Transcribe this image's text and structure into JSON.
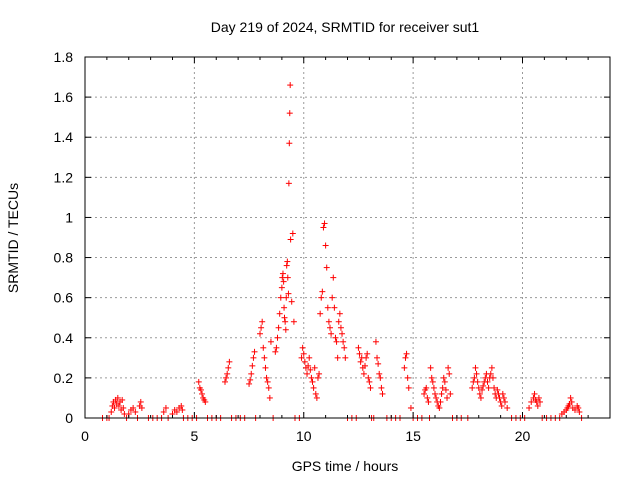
{
  "chart_data": {
    "type": "scatter",
    "title": "Day 219 of 2024, SRMTID for receiver sut1",
    "xlabel": "GPS time / hours",
    "ylabel": "SRMTID / TECUs",
    "xlim": [
      0,
      24
    ],
    "ylim": [
      0,
      1.8
    ],
    "xticks": [
      "0",
      "5",
      "10",
      "15",
      "20"
    ],
    "yticks": [
      "0",
      "0.2",
      "0.4",
      "0.6",
      "0.8",
      "1",
      "1.2",
      "1.4",
      "1.6",
      "1.8"
    ],
    "grid": true,
    "marker": "+",
    "color": "#ff0000",
    "series": [
      {
        "name": "sut1",
        "points": [
          [
            0.8,
            0
          ],
          [
            1.0,
            0
          ],
          [
            1.1,
            0
          ],
          [
            1.2,
            0.03
          ],
          [
            1.25,
            0.06
          ],
          [
            1.3,
            0.08
          ],
          [
            1.35,
            0.05
          ],
          [
            1.4,
            0.09
          ],
          [
            1.45,
            0.07
          ],
          [
            1.5,
            0.1
          ],
          [
            1.55,
            0.06
          ],
          [
            1.6,
            0.08
          ],
          [
            1.65,
            0.04
          ],
          [
            1.7,
            0.09
          ],
          [
            1.75,
            0.05
          ],
          [
            1.8,
            0.02
          ],
          [
            1.9,
            0
          ],
          [
            2.0,
            0.02
          ],
          [
            2.1,
            0.04
          ],
          [
            2.2,
            0.05
          ],
          [
            2.3,
            0.03
          ],
          [
            2.4,
            0
          ],
          [
            2.5,
            0.06
          ],
          [
            2.55,
            0.08
          ],
          [
            2.6,
            0.05
          ],
          [
            2.9,
            0
          ],
          [
            3.1,
            0
          ],
          [
            3.3,
            0
          ],
          [
            3.5,
            0
          ],
          [
            3.6,
            0.03
          ],
          [
            3.7,
            0.05
          ],
          [
            3.8,
            0
          ],
          [
            4.0,
            0.02
          ],
          [
            4.1,
            0.04
          ],
          [
            4.2,
            0.03
          ],
          [
            4.3,
            0.05
          ],
          [
            4.4,
            0.06
          ],
          [
            4.45,
            0.04
          ],
          [
            4.5,
            0
          ],
          [
            4.7,
            0
          ],
          [
            4.9,
            0
          ],
          [
            5.1,
            0
          ],
          [
            5.2,
            0.18
          ],
          [
            5.25,
            0.15
          ],
          [
            5.3,
            0.14
          ],
          [
            5.35,
            0.12
          ],
          [
            5.4,
            0.1
          ],
          [
            5.45,
            0.09
          ],
          [
            5.5,
            0.08
          ],
          [
            5.6,
            0
          ],
          [
            5.8,
            0
          ],
          [
            6.0,
            0
          ],
          [
            6.2,
            0
          ],
          [
            6.4,
            0.18
          ],
          [
            6.45,
            0.2
          ],
          [
            6.5,
            0.22
          ],
          [
            6.55,
            0.25
          ],
          [
            6.6,
            0.28
          ],
          [
            6.7,
            0
          ],
          [
            6.9,
            0
          ],
          [
            7.1,
            0
          ],
          [
            7.3,
            0
          ],
          [
            7.5,
            0.17
          ],
          [
            7.55,
            0.19
          ],
          [
            7.6,
            0.22
          ],
          [
            7.65,
            0.26
          ],
          [
            7.7,
            0.3
          ],
          [
            7.75,
            0.33
          ],
          [
            7.8,
            0
          ],
          [
            8.0,
            0.42
          ],
          [
            8.05,
            0.45
          ],
          [
            8.1,
            0.48
          ],
          [
            8.15,
            0.35
          ],
          [
            8.2,
            0.3
          ],
          [
            8.25,
            0.25
          ],
          [
            8.3,
            0.2
          ],
          [
            8.35,
            0.18
          ],
          [
            8.4,
            0.15
          ],
          [
            8.45,
            0.1
          ],
          [
            8.5,
            0.38
          ],
          [
            8.6,
            0
          ],
          [
            8.7,
            0.33
          ],
          [
            8.75,
            0.35
          ],
          [
            8.8,
            0.4
          ],
          [
            8.85,
            0.45
          ],
          [
            8.9,
            0.52
          ],
          [
            8.95,
            0.6
          ],
          [
            9.0,
            0.65
          ],
          [
            9.02,
            0.7
          ],
          [
            9.05,
            0.72
          ],
          [
            9.08,
            0.68
          ],
          [
            9.1,
            0.55
          ],
          [
            9.12,
            0.5
          ],
          [
            9.15,
            0.48
          ],
          [
            9.18,
            0.44
          ],
          [
            9.2,
            0.6
          ],
          [
            9.22,
            0.76
          ],
          [
            9.25,
            0.78
          ],
          [
            9.27,
            0.7
          ],
          [
            9.3,
            0.62
          ],
          [
            9.32,
            1.17
          ],
          [
            9.34,
            1.37
          ],
          [
            9.36,
            1.52
          ],
          [
            9.38,
            1.66
          ],
          [
            9.4,
            0.89
          ],
          [
            9.45,
            0.58
          ],
          [
            9.5,
            0.92
          ],
          [
            9.55,
            0.48
          ],
          [
            9.6,
            0
          ],
          [
            9.8,
            0
          ],
          [
            9.9,
            0.3
          ],
          [
            9.95,
            0.35
          ],
          [
            10.0,
            0.32
          ],
          [
            10.05,
            0.28
          ],
          [
            10.1,
            0.25
          ],
          [
            10.15,
            0.22
          ],
          [
            10.2,
            0.26
          ],
          [
            10.25,
            0.3
          ],
          [
            10.3,
            0.24
          ],
          [
            10.35,
            0.2
          ],
          [
            10.4,
            0.18
          ],
          [
            10.45,
            0.15
          ],
          [
            10.5,
            0.25
          ],
          [
            10.55,
            0.12
          ],
          [
            10.6,
            0.1
          ],
          [
            10.65,
            0.2
          ],
          [
            10.7,
            0.22
          ],
          [
            10.75,
            0.52
          ],
          [
            10.8,
            0.6
          ],
          [
            10.85,
            0.63
          ],
          [
            10.9,
            0.95
          ],
          [
            10.95,
            0.97
          ],
          [
            11.0,
            0.86
          ],
          [
            11.05,
            0.75
          ],
          [
            11.1,
            0.55
          ],
          [
            11.15,
            0.48
          ],
          [
            11.2,
            0.45
          ],
          [
            11.25,
            0.42
          ],
          [
            11.3,
            0.6
          ],
          [
            11.35,
            0.7
          ],
          [
            11.4,
            0.55
          ],
          [
            11.45,
            0.4
          ],
          [
            11.5,
            0.38
          ],
          [
            11.55,
            0.3
          ],
          [
            11.6,
            0.48
          ],
          [
            11.65,
            0.52
          ],
          [
            11.7,
            0.45
          ],
          [
            11.75,
            0.42
          ],
          [
            11.8,
            0.38
          ],
          [
            11.85,
            0.35
          ],
          [
            11.9,
            0.3
          ],
          [
            12.0,
            0
          ],
          [
            12.2,
            0
          ],
          [
            12.4,
            0
          ],
          [
            12.5,
            0.35
          ],
          [
            12.55,
            0.32
          ],
          [
            12.6,
            0.28
          ],
          [
            12.65,
            0.3
          ],
          [
            12.7,
            0.25
          ],
          [
            12.75,
            0.22
          ],
          [
            12.8,
            0.26
          ],
          [
            12.85,
            0.3
          ],
          [
            12.9,
            0.32
          ],
          [
            12.95,
            0.2
          ],
          [
            13.0,
            0.18
          ],
          [
            13.05,
            0.15
          ],
          [
            13.1,
            0
          ],
          [
            13.2,
            0
          ],
          [
            13.3,
            0.38
          ],
          [
            13.35,
            0.3
          ],
          [
            13.4,
            0.27
          ],
          [
            13.45,
            0.22
          ],
          [
            13.5,
            0.2
          ],
          [
            13.55,
            0.15
          ],
          [
            13.6,
            0.12
          ],
          [
            13.8,
            0
          ],
          [
            14.0,
            0
          ],
          [
            14.2,
            0
          ],
          [
            14.4,
            0
          ],
          [
            14.6,
            0.25
          ],
          [
            14.65,
            0.3
          ],
          [
            14.7,
            0.32
          ],
          [
            14.75,
            0.2
          ],
          [
            14.8,
            0.15
          ],
          [
            14.9,
            0.05
          ],
          [
            15.0,
            0
          ],
          [
            15.2,
            0
          ],
          [
            15.4,
            0
          ],
          [
            15.5,
            0.12
          ],
          [
            15.55,
            0.14
          ],
          [
            15.6,
            0.15
          ],
          [
            15.65,
            0.1
          ],
          [
            15.7,
            0.08
          ],
          [
            15.75,
            0
          ],
          [
            15.8,
            0.25
          ],
          [
            15.85,
            0.2
          ],
          [
            15.9,
            0.18
          ],
          [
            15.95,
            0.15
          ],
          [
            16.0,
            0.12
          ],
          [
            16.05,
            0.1
          ],
          [
            16.1,
            0.08
          ],
          [
            16.15,
            0.06
          ],
          [
            16.2,
            0.05
          ],
          [
            16.25,
            0.08
          ],
          [
            16.3,
            0.12
          ],
          [
            16.35,
            0.15
          ],
          [
            16.4,
            0.2
          ],
          [
            16.45,
            0.18
          ],
          [
            16.5,
            0.14
          ],
          [
            16.55,
            0.1
          ],
          [
            16.6,
            0.25
          ],
          [
            16.65,
            0.22
          ],
          [
            16.7,
            0.12
          ],
          [
            16.8,
            0
          ],
          [
            17.0,
            0
          ],
          [
            17.2,
            0
          ],
          [
            17.5,
            0
          ],
          [
            17.7,
            0.15
          ],
          [
            17.75,
            0.18
          ],
          [
            17.8,
            0.2
          ],
          [
            17.85,
            0.25
          ],
          [
            17.9,
            0.22
          ],
          [
            17.95,
            0.18
          ],
          [
            18.0,
            0.15
          ],
          [
            18.05,
            0.12
          ],
          [
            18.1,
            0.1
          ],
          [
            18.15,
            0.14
          ],
          [
            18.2,
            0.16
          ],
          [
            18.25,
            0.18
          ],
          [
            18.3,
            0.2
          ],
          [
            18.35,
            0.22
          ],
          [
            18.4,
            0.18
          ],
          [
            18.45,
            0.15
          ],
          [
            18.5,
            0.2
          ],
          [
            18.55,
            0.22
          ],
          [
            18.6,
            0.25
          ],
          [
            18.65,
            0.2
          ],
          [
            18.7,
            0.15
          ],
          [
            18.75,
            0.12
          ],
          [
            18.8,
            0.1
          ],
          [
            18.85,
            0.14
          ],
          [
            18.9,
            0.12
          ],
          [
            18.95,
            0.1
          ],
          [
            19.0,
            0.08
          ],
          [
            19.05,
            0.06
          ],
          [
            19.1,
            0.12
          ],
          [
            19.15,
            0.1
          ],
          [
            19.2,
            0.08
          ],
          [
            19.3,
            0.05
          ],
          [
            19.5,
            0
          ],
          [
            19.7,
            0
          ],
          [
            19.9,
            0
          ],
          [
            20.1,
            0
          ],
          [
            20.3,
            0.05
          ],
          [
            20.4,
            0.08
          ],
          [
            20.5,
            0.1
          ],
          [
            20.55,
            0.12
          ],
          [
            20.6,
            0.09
          ],
          [
            20.65,
            0.08
          ],
          [
            20.7,
            0.06
          ],
          [
            20.75,
            0.1
          ],
          [
            20.8,
            0.08
          ],
          [
            20.9,
            0
          ],
          [
            21.1,
            0
          ],
          [
            21.3,
            0
          ],
          [
            21.5,
            0
          ],
          [
            21.7,
            0
          ],
          [
            21.8,
            0.02
          ],
          [
            21.9,
            0.03
          ],
          [
            22.0,
            0.04
          ],
          [
            22.05,
            0.05
          ],
          [
            22.1,
            0.06
          ],
          [
            22.15,
            0.07
          ],
          [
            22.2,
            0.1
          ],
          [
            22.25,
            0.08
          ],
          [
            22.3,
            0.05
          ],
          [
            22.4,
            0.04
          ],
          [
            22.5,
            0.06
          ],
          [
            22.55,
            0.05
          ],
          [
            22.6,
            0.03
          ],
          [
            22.7,
            0
          ]
        ]
      }
    ]
  }
}
